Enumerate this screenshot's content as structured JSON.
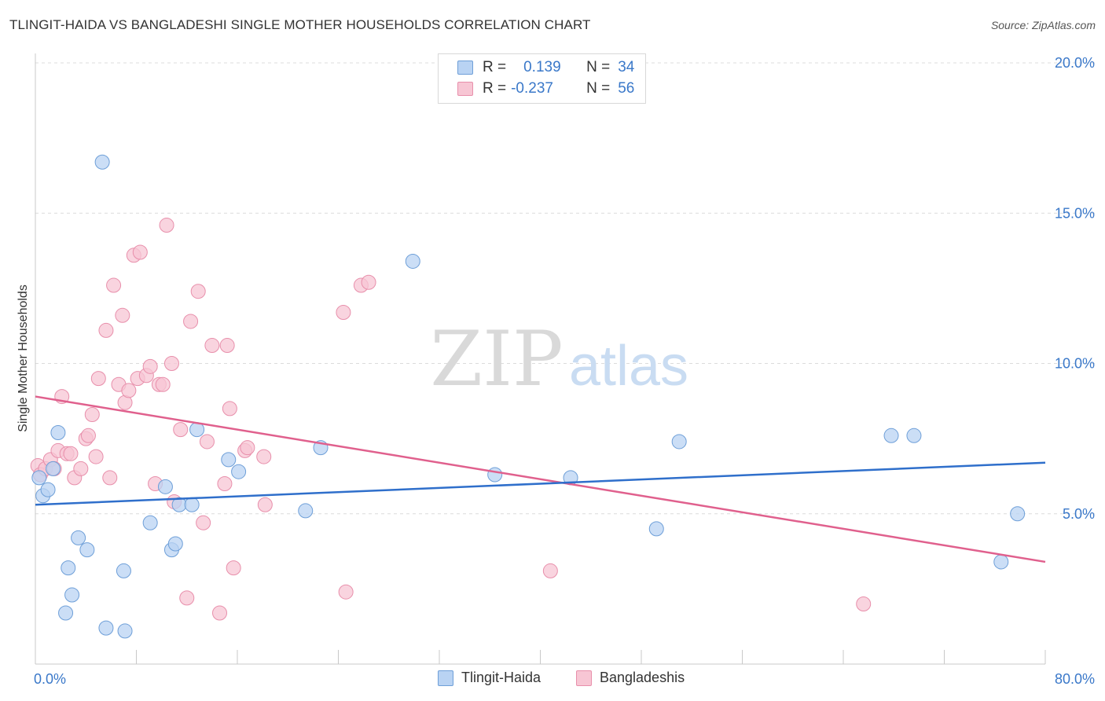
{
  "title": "TLINGIT-HAIDA VS BANGLADESHI SINGLE MOTHER HOUSEHOLDS CORRELATION CHART",
  "source": "Source: ZipAtlas.com",
  "watermark": {
    "zip": "ZIP",
    "atlas": "atlas"
  },
  "legend": [
    {
      "r_label": "R =",
      "r_value": "0.139",
      "n_label": "N =",
      "n_value": "34"
    },
    {
      "r_label": "R =",
      "r_value": "-0.237",
      "n_label": "N =",
      "n_value": "56"
    }
  ],
  "bottom_legend": [
    "Tlingit-Haida",
    "Bangladeshis"
  ],
  "colors": {
    "blue_fill": "#b9d3f3",
    "blue_stroke": "#6e9fd8",
    "blue_line": "#2f6fcb",
    "pink_fill": "#f7c6d4",
    "pink_stroke": "#e88fab",
    "pink_line": "#e0608d",
    "tick_text": "#3a78c9",
    "grid": "#dcdcdc"
  },
  "chart_data": {
    "type": "scatter",
    "title": "TLINGIT-HAIDA VS BANGLADESHI SINGLE MOTHER HOUSEHOLDS CORRELATION CHART",
    "xlabel": "",
    "ylabel": "Single Mother Households",
    "xlim": [
      0,
      80
    ],
    "ylim": [
      0,
      20
    ],
    "x_tick_labels": [
      "0.0%",
      "80.0%"
    ],
    "y_ticks": [
      5,
      10,
      15,
      20
    ],
    "y_tick_labels": [
      "5.0%",
      "10.0%",
      "15.0%",
      "20.0%"
    ],
    "grid": true,
    "legend_position": "top-center",
    "series": [
      {
        "name": "Tlingit-Haida",
        "r": 0.139,
        "n": 34,
        "trend": {
          "x": [
            0,
            80
          ],
          "y": [
            5.3,
            6.7
          ]
        },
        "points": [
          [
            0.3,
            6.2
          ],
          [
            0.6,
            5.6
          ],
          [
            1.0,
            5.8
          ],
          [
            1.4,
            6.5
          ],
          [
            1.8,
            7.7
          ],
          [
            2.4,
            1.7
          ],
          [
            2.6,
            3.2
          ],
          [
            2.9,
            2.3
          ],
          [
            3.4,
            4.2
          ],
          [
            4.1,
            3.8
          ],
          [
            5.3,
            16.7
          ],
          [
            5.6,
            1.2
          ],
          [
            7.0,
            3.1
          ],
          [
            7.1,
            1.1
          ],
          [
            9.1,
            4.7
          ],
          [
            10.3,
            5.9
          ],
          [
            10.8,
            3.8
          ],
          [
            11.1,
            4.0
          ],
          [
            11.4,
            5.3
          ],
          [
            12.4,
            5.3
          ],
          [
            12.8,
            7.8
          ],
          [
            15.3,
            6.8
          ],
          [
            16.1,
            6.4
          ],
          [
            21.4,
            5.1
          ],
          [
            22.6,
            7.2
          ],
          [
            29.9,
            13.4
          ],
          [
            36.4,
            6.3
          ],
          [
            42.4,
            6.2
          ],
          [
            49.2,
            4.5
          ],
          [
            51.0,
            7.4
          ],
          [
            67.8,
            7.6
          ],
          [
            69.6,
            7.6
          ],
          [
            76.5,
            3.4
          ],
          [
            77.8,
            5.0
          ]
        ]
      },
      {
        "name": "Bangladeshis",
        "r": -0.237,
        "n": 56,
        "trend": {
          "x": [
            0,
            80
          ],
          "y": [
            8.9,
            3.4
          ]
        },
        "points": [
          [
            0.2,
            6.6
          ],
          [
            0.4,
            6.3
          ],
          [
            0.8,
            6.5
          ],
          [
            1.2,
            6.8
          ],
          [
            1.5,
            6.5
          ],
          [
            1.8,
            7.1
          ],
          [
            2.1,
            8.9
          ],
          [
            2.5,
            7.0
          ],
          [
            2.8,
            7.0
          ],
          [
            3.1,
            6.2
          ],
          [
            3.6,
            6.5
          ],
          [
            4.0,
            7.5
          ],
          [
            4.2,
            7.6
          ],
          [
            4.5,
            8.3
          ],
          [
            4.8,
            6.9
          ],
          [
            5.0,
            9.5
          ],
          [
            5.6,
            11.1
          ],
          [
            5.9,
            6.2
          ],
          [
            6.2,
            12.6
          ],
          [
            6.6,
            9.3
          ],
          [
            6.9,
            11.6
          ],
          [
            7.1,
            8.7
          ],
          [
            7.4,
            9.1
          ],
          [
            7.8,
            13.6
          ],
          [
            8.1,
            9.5
          ],
          [
            8.3,
            13.7
          ],
          [
            8.8,
            9.6
          ],
          [
            9.1,
            9.9
          ],
          [
            9.5,
            6.0
          ],
          [
            9.8,
            9.3
          ],
          [
            10.1,
            9.3
          ],
          [
            10.4,
            14.6
          ],
          [
            10.8,
            10.0
          ],
          [
            11.0,
            5.4
          ],
          [
            11.5,
            7.8
          ],
          [
            12.0,
            2.2
          ],
          [
            12.3,
            11.4
          ],
          [
            12.9,
            12.4
          ],
          [
            13.3,
            4.7
          ],
          [
            13.6,
            7.4
          ],
          [
            14.0,
            10.6
          ],
          [
            14.6,
            1.7
          ],
          [
            15.0,
            6.0
          ],
          [
            15.2,
            10.6
          ],
          [
            15.4,
            8.5
          ],
          [
            15.7,
            3.2
          ],
          [
            16.6,
            7.1
          ],
          [
            16.8,
            7.2
          ],
          [
            18.1,
            6.9
          ],
          [
            18.2,
            5.3
          ],
          [
            24.4,
            11.7
          ],
          [
            24.6,
            2.4
          ],
          [
            25.8,
            12.6
          ],
          [
            26.4,
            12.7
          ],
          [
            40.8,
            3.1
          ],
          [
            65.6,
            2.0
          ]
        ]
      }
    ]
  }
}
